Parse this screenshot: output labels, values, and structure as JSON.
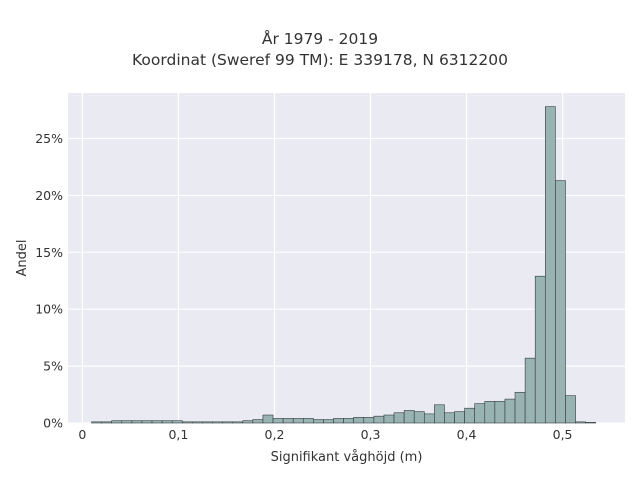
{
  "chart_data": {
    "type": "bar",
    "title": "År 1979 - 2019",
    "subtitle": "Koordinat (Sweref 99 TM): E 339178, N 6312200",
    "xlabel": "Signifikant våghöjd (m)",
    "ylabel": "Andel",
    "xlim": [
      -0.015,
      0.565
    ],
    "ylim": [
      0,
      0.29
    ],
    "x_ticks": [
      0,
      0.1,
      0.2,
      0.3,
      0.4,
      0.5
    ],
    "x_tick_labels": [
      "0",
      "0,1",
      "0,2",
      "0,3",
      "0,4",
      "0,5"
    ],
    "y_ticks": [
      0,
      0.05,
      0.1,
      0.15,
      0.2,
      0.25
    ],
    "y_tick_labels": [
      "0%",
      "5%",
      "10%",
      "15%",
      "20%",
      "25%"
    ],
    "bin_width": 0.0105,
    "bin_start": 0.0095,
    "values": [
      0.001,
      0.001,
      0.002,
      0.002,
      0.002,
      0.002,
      0.002,
      0.002,
      0.002,
      0.001,
      0.001,
      0.001,
      0.001,
      0.001,
      0.001,
      0.002,
      0.003,
      0.007,
      0.004,
      0.004,
      0.004,
      0.004,
      0.003,
      0.003,
      0.004,
      0.004,
      0.005,
      0.005,
      0.006,
      0.007,
      0.009,
      0.011,
      0.01,
      0.008,
      0.016,
      0.009,
      0.01,
      0.013,
      0.017,
      0.019,
      0.019,
      0.021,
      0.027,
      0.057,
      0.129,
      0.278,
      0.213,
      0.024,
      0.001,
      0.0005
    ],
    "bar_color": "#99b3b3",
    "grid": true,
    "background": "#eaeaf2"
  }
}
